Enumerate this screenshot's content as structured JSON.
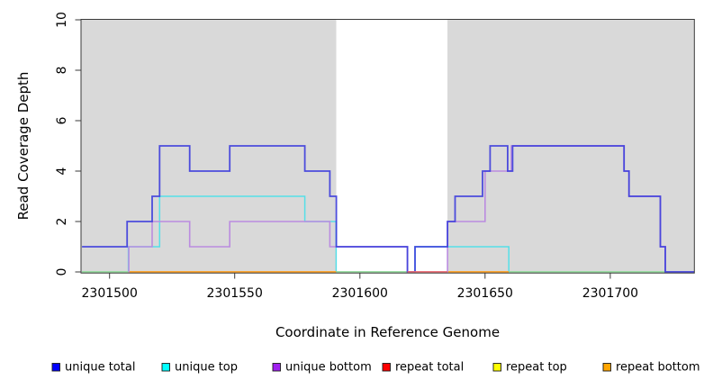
{
  "chart_data": {
    "type": "line",
    "subtype": "step-coverage",
    "title": "",
    "xlabel": "Coordinate in Reference Genome",
    "ylabel": "Read Coverage Depth",
    "xlim": [
      2301488.6,
      2301733.6
    ],
    "ylim": [
      0,
      10
    ],
    "x_ticks": [
      2301500,
      2301550,
      2301600,
      2301650,
      2301700
    ],
    "y_ticks": [
      0,
      2,
      4,
      6,
      8,
      10
    ],
    "grid": false,
    "legend_position": "bottom",
    "background_regions": [
      {
        "from": 2301488.6,
        "to": 2301590.5,
        "color": "#d9d9d9"
      },
      {
        "from": 2301590.5,
        "to": 2301635.0,
        "color": "#ffffff"
      },
      {
        "from": 2301635.0,
        "to": 2301733.6,
        "color": "#d9d9d9"
      }
    ],
    "series": [
      {
        "name": "unique total",
        "legend_color": "#0000FF",
        "line_color": "#3c3cdc",
        "line_opacity": 0.9,
        "line_width": 1.8,
        "draw": true,
        "end": 2301733.5,
        "steps": [
          [
            2301489,
            1
          ],
          [
            2301507,
            2
          ],
          [
            2301517,
            3
          ],
          [
            2301520,
            5
          ],
          [
            2301532,
            4
          ],
          [
            2301548,
            5
          ],
          [
            2301578,
            4
          ],
          [
            2301588,
            3
          ],
          [
            2301590.6,
            1
          ],
          [
            2301619,
            0
          ],
          [
            2301622,
            1
          ],
          [
            2301635,
            2
          ],
          [
            2301638,
            3
          ],
          [
            2301649,
            4
          ],
          [
            2301652,
            5
          ],
          [
            2301659,
            4
          ],
          [
            2301661,
            5
          ],
          [
            2301705.5,
            4
          ],
          [
            2301707.5,
            3
          ],
          [
            2301720,
            1
          ],
          [
            2301722,
            0
          ]
        ]
      },
      {
        "name": "unique top",
        "legend_color": "#00FFFF",
        "line_color": "#55dfe8",
        "line_opacity": 1,
        "line_width": 1.5,
        "draw": true,
        "end": 2301733.5,
        "steps": [
          [
            2301489,
            0
          ],
          [
            2301507.5,
            1
          ],
          [
            2301520,
            3
          ],
          [
            2301578,
            2
          ],
          [
            2301590.5,
            0
          ],
          [
            2301622,
            1
          ],
          [
            2301659.5,
            0
          ]
        ]
      },
      {
        "name": "unique bottom",
        "legend_color": "#A020F0",
        "line_color": "#bb8ce0",
        "line_opacity": 1,
        "line_width": 1.6,
        "draw": true,
        "end": 2301733.5,
        "steps": [
          [
            2301507.6,
            0
          ],
          [
            2301507.7,
            1
          ],
          [
            2301517,
            2
          ],
          [
            2301532,
            1
          ],
          [
            2301548,
            2
          ],
          [
            2301588,
            1
          ],
          [
            2301619,
            0
          ],
          [
            2301635,
            2
          ],
          [
            2301650,
            4
          ],
          [
            2301660.5,
            5
          ],
          [
            2301705.5,
            4
          ],
          [
            2301707.5,
            3
          ],
          [
            2301720,
            1
          ],
          [
            2301722,
            0
          ]
        ]
      },
      {
        "name": "repeat total",
        "legend_color": "#FF0000",
        "line_color": "#ee6a6e",
        "line_opacity": 1,
        "line_width": 1.6,
        "draw": false,
        "end": 2301733.5,
        "steps": [
          [
            2301489,
            0
          ]
        ]
      },
      {
        "name": "repeat top",
        "legend_color": "#FFFF00",
        "line_color": "#f2ec6c",
        "line_opacity": 1,
        "line_width": 1.6,
        "draw": false,
        "end": 2301733.5,
        "steps": [
          [
            2301489,
            0
          ]
        ]
      },
      {
        "name": "repeat bottom",
        "legend_color": "#FFA500",
        "line_color": "#ff9e1b",
        "line_opacity": 1,
        "line_width": 1.8,
        "draw": false,
        "end": 2301733.5,
        "steps": [
          [
            2301489,
            0
          ]
        ]
      }
    ],
    "zero_line_segments": [
      {
        "from": 2301489,
        "to": 2301507.5,
        "color": "#9bdc9b"
      },
      {
        "from": 2301507.5,
        "to": 2301590.5,
        "color": "#ff9e1b"
      },
      {
        "from": 2301590.6,
        "to": 2301619,
        "color": "#9bdc9b"
      },
      {
        "from": 2301635,
        "to": 2301659.5,
        "color": "#ff9e1b"
      },
      {
        "from": 2301659.5,
        "to": 2301722,
        "color": "#9bdc9b"
      },
      {
        "from": 2301619,
        "to": 2301635,
        "color": "#ee6a6e"
      }
    ]
  },
  "legend": {
    "items": [
      {
        "label": "unique total",
        "color": "#0000FF"
      },
      {
        "label": "unique top",
        "color": "#00FFFF"
      },
      {
        "label": "unique bottom",
        "color": "#A020F0"
      },
      {
        "label": "repeat total",
        "color": "#FF0000"
      },
      {
        "label": "repeat top",
        "color": "#FFFF00"
      },
      {
        "label": "repeat bottom",
        "color": "#FFA500"
      }
    ]
  }
}
